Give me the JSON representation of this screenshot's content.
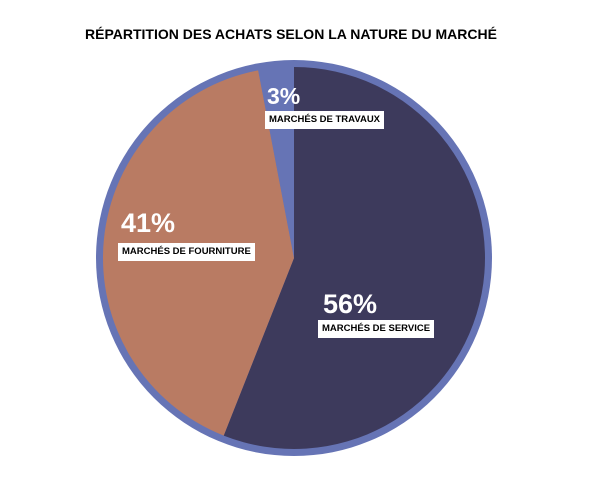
{
  "chart_data": {
    "type": "pie",
    "title": "RÉPARTITION DES ACHATS SELON LA NATURE DU MARCHÉ",
    "slices": [
      {
        "label": "MARCHÉS DE SERVICE",
        "value": 56,
        "value_label": "56%",
        "color": "#3d3a5c"
      },
      {
        "label": "MARCHÉS DE FOURNITURE",
        "value": 41,
        "value_label": "41%",
        "color": "#b97b63"
      },
      {
        "label": "MARCHÉS DE TRAVAUX",
        "value": 3,
        "value_label": "3%",
        "color": "#6674b5"
      }
    ],
    "border_color": "#6674b5"
  }
}
